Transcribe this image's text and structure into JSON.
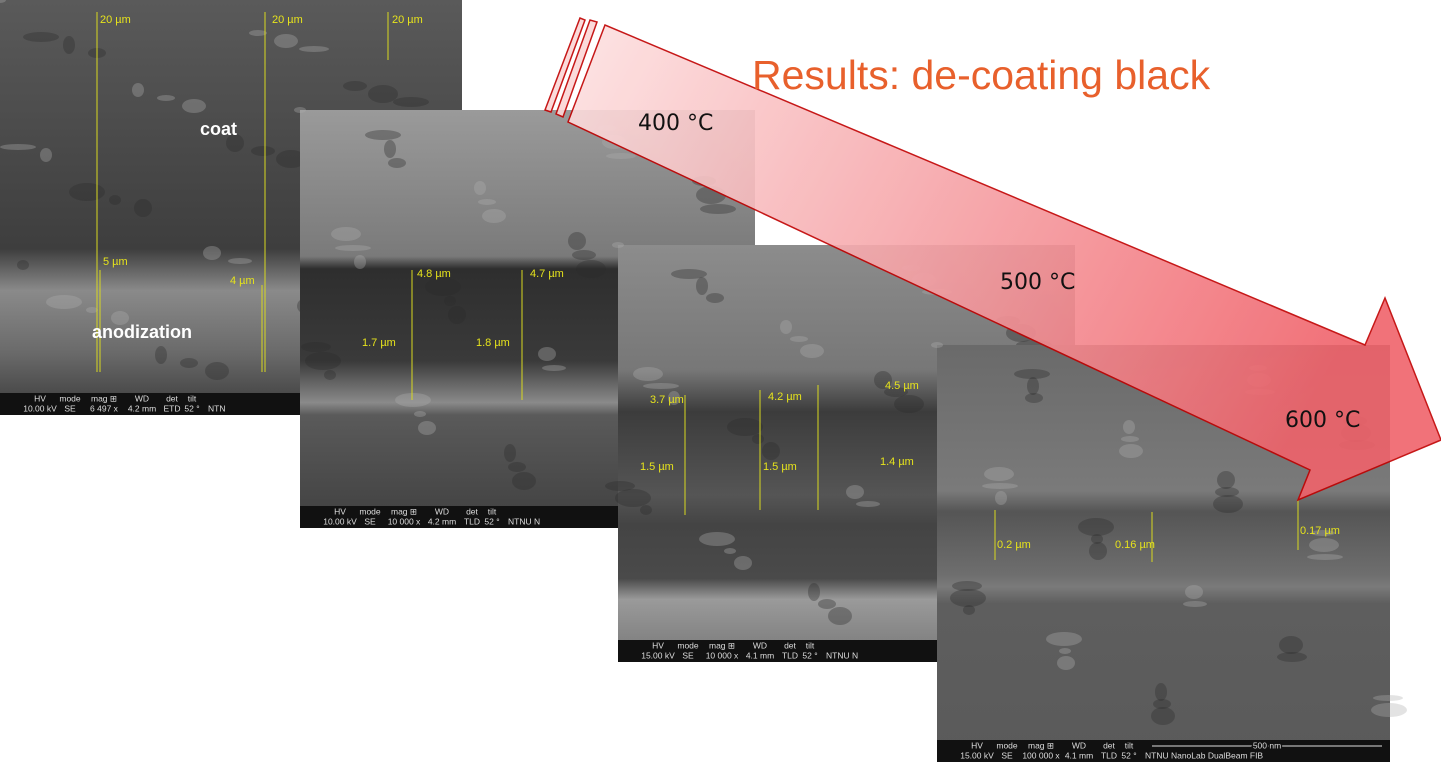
{
  "title": "Results: de-coating black",
  "temperatures": [
    "400 °C",
    "500 °C",
    "600 °C"
  ],
  "databar_headers": [
    "HV",
    "mode",
    "mag ⊞",
    "WD",
    "det",
    "tilt"
  ],
  "images": [
    {
      "labels": [
        "20 µm",
        "20 µm",
        "20 µm",
        "coat",
        "5 µm",
        "4 µm",
        "anodization"
      ],
      "databar_values": [
        "10.00 kV",
        "SE",
        "6 497 x",
        "4.2 mm",
        "ETD",
        "52 °"
      ],
      "footer": "NTN"
    },
    {
      "labels": [
        "4.8 µm",
        "4.7 µm",
        "1.7 µm",
        "1.8 µm"
      ],
      "databar_values": [
        "10.00 kV",
        "SE",
        "10 000 x",
        "4.2 mm",
        "TLD",
        "52 °"
      ],
      "footer": "NTNU N"
    },
    {
      "labels": [
        "3.7 µm",
        "4.2 µm",
        "4.5 µm",
        "1.5 µm",
        "1.5 µm",
        "1.4 µm"
      ],
      "databar_values": [
        "15.00 kV",
        "SE",
        "10 000 x",
        "4.1 mm",
        "TLD",
        "52 °"
      ],
      "footer": "NTNU N"
    },
    {
      "labels": [
        "0.2 µm",
        "0.16 µm",
        "0.17 µm"
      ],
      "databar_values": [
        "15.00 kV",
        "SE",
        "100 000 x",
        "4.1 mm",
        "TLD",
        "52 °"
      ],
      "scale": "500 nm",
      "footer": "NTNU NanoLab DualBeam FIB"
    }
  ]
}
